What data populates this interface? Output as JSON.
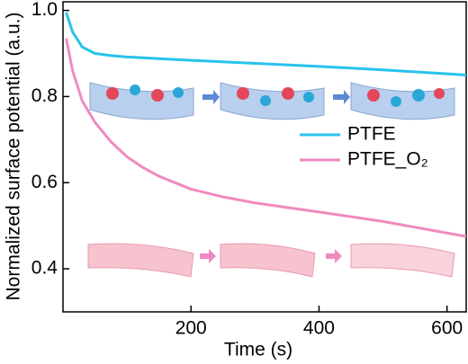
{
  "chart_data": {
    "type": "line",
    "x_label": "Time (s)",
    "y_label": "Normalized surface potential (a.u.)",
    "xlim": [
      0,
      630
    ],
    "ylim": [
      0.3,
      1.02
    ],
    "xticks": [
      200,
      400,
      600
    ],
    "yticks": [
      {
        "value": 0.4,
        "label": "0.4"
      },
      {
        "value": 0.6,
        "label": "0.6"
      },
      {
        "value": 0.8,
        "label": "0.8"
      },
      {
        "value": 1.0,
        "label": "1.0"
      }
    ],
    "legend": "center-right",
    "series": [
      {
        "name": "PTFE",
        "color": "#27c3ea",
        "x": [
          5,
          15,
          30,
          50,
          75,
          100,
          150,
          200,
          300,
          400,
          500,
          630
        ],
        "values": [
          0.995,
          0.95,
          0.915,
          0.9,
          0.895,
          0.892,
          0.888,
          0.884,
          0.877,
          0.87,
          0.862,
          0.85
        ]
      },
      {
        "name": "PTFE_O₂",
        "color": "#ef8ac0",
        "x": [
          5,
          15,
          30,
          50,
          75,
          100,
          125,
          150,
          200,
          250,
          300,
          400,
          500,
          630
        ],
        "values": [
          0.935,
          0.86,
          0.79,
          0.74,
          0.695,
          0.66,
          0.635,
          0.615,
          0.585,
          0.567,
          0.553,
          0.532,
          0.51,
          0.475
        ]
      }
    ]
  }
}
